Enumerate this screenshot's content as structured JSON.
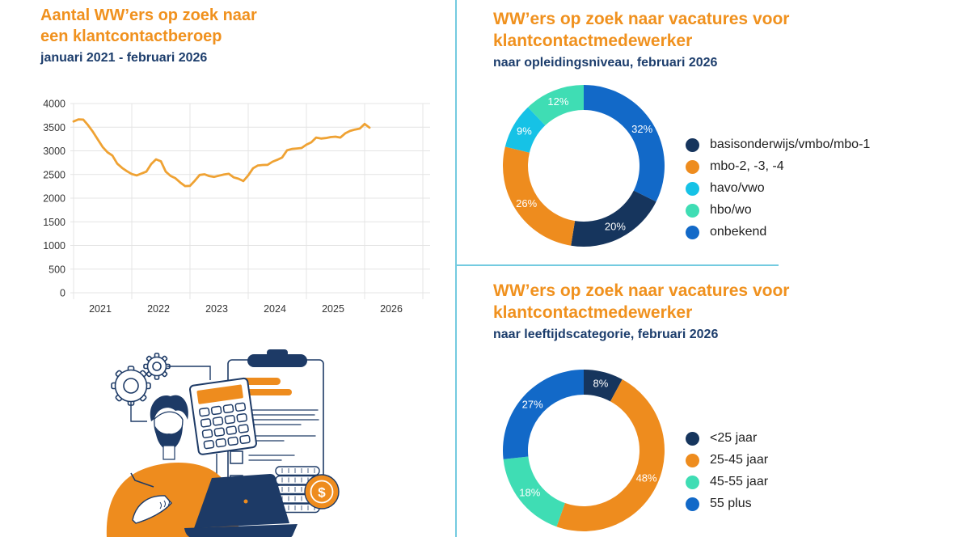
{
  "colors": {
    "title_orange": "#F0911E",
    "subtitle_navy": "#1C3D6C",
    "line_orange": "#EFA233",
    "donut_navy": "#16355D",
    "donut_orange": "#EE8C1E",
    "donut_cyan": "#16C2E6",
    "donut_mint": "#3FDDB4",
    "donut_blue": "#1269C8",
    "divider_cyan": "#74CBE0",
    "grid_gray": "#E4E4E4",
    "axis_text": "#333333",
    "illustration_navy": "#1D3A66"
  },
  "trend": {
    "title_line1": "Aantal WW’ers op zoek naar",
    "title_line2": "een klantcontactberoep",
    "subtitle": "januari 2021 - februari 2026"
  },
  "education": {
    "title_line1": "WW’ers op zoek naar vacatures voor",
    "title_line2": "klantcontactmedewerker",
    "subtitle": "naar opleidingsniveau, februari 2026"
  },
  "age": {
    "title_line1": "WW’ers op zoek naar vacatures voor",
    "title_line2": "klantcontactmedewerker",
    "subtitle": "naar leeftijdscategorie, februari 2026"
  },
  "illustration": {
    "coin_symbol": "$"
  },
  "chart_data": [
    {
      "type": "line",
      "title": "Aantal WW’ers op zoek naar een klantcontactberoep",
      "period_label": "januari 2021 - februari 2026",
      "x_unit": "month",
      "x_monthly_start": "2021-01",
      "x_monthly_end": "2026-02",
      "x_tick_labels": [
        "2021",
        "2022",
        "2023",
        "2024",
        "2025",
        "2026"
      ],
      "ylim": [
        0,
        4000
      ],
      "yticks": [
        0,
        500,
        1000,
        1500,
        2000,
        2500,
        3000,
        3500,
        4000
      ],
      "grid": true,
      "legend_position": "none",
      "series": [
        {
          "name": "aantal WW'ers",
          "color": "#EFA233",
          "values": [
            3620,
            3665,
            3660,
            3540,
            3400,
            3240,
            3080,
            2970,
            2900,
            2730,
            2640,
            2570,
            2510,
            2480,
            2520,
            2560,
            2720,
            2820,
            2780,
            2560,
            2470,
            2420,
            2330,
            2255,
            2260,
            2370,
            2490,
            2505,
            2465,
            2450,
            2475,
            2500,
            2515,
            2440,
            2410,
            2360,
            2480,
            2630,
            2690,
            2700,
            2705,
            2770,
            2810,
            2860,
            3010,
            3040,
            3050,
            3060,
            3130,
            3180,
            3280,
            3260,
            3270,
            3290,
            3300,
            3280,
            3370,
            3420,
            3450,
            3470,
            3570,
            3490
          ]
        }
      ]
    },
    {
      "type": "donut",
      "title": "WW’ers op zoek naar vacatures voor klantcontactmedewerker",
      "subtitle": "naar opleidingsniveau, februari 2026",
      "unit": "%",
      "slices": [
        {
          "label": "onbekend",
          "value": 32,
          "color": "#1269C8"
        },
        {
          "label": "basisonderwijs/vmbo/mbo-1",
          "value": 20,
          "color": "#16355D"
        },
        {
          "label": "mbo-2, -3, -4",
          "value": 26,
          "color": "#EE8C1E"
        },
        {
          "label": "havo/vwo",
          "value": 9,
          "color": "#16C2E6"
        },
        {
          "label": "hbo/wo",
          "value": 12,
          "color": "#3FDDB4"
        }
      ],
      "legend": [
        "basisonderwijs/vmbo/mbo-1",
        "mbo-2, -3, -4",
        "havo/vwo",
        "hbo/wo",
        "onbekend"
      ],
      "legend_position": "right"
    },
    {
      "type": "donut",
      "title": "WW’ers op zoek naar vacatures voor klantcontactmedewerker",
      "subtitle": "naar leeftijdscategorie, februari 2026",
      "unit": "%",
      "slices": [
        {
          "label": "<25 jaar",
          "value": 8,
          "color": "#16355D"
        },
        {
          "label": "25-45 jaar",
          "value": 48,
          "color": "#EE8C1E"
        },
        {
          "label": "45-55 jaar",
          "value": 18,
          "color": "#3FDDB4"
        },
        {
          "label": "55 plus",
          "value": 27,
          "color": "#1269C8"
        }
      ],
      "legend": [
        "<25 jaar",
        "25-45 jaar",
        "45-55 jaar",
        "55 plus"
      ],
      "legend_position": "right"
    }
  ]
}
